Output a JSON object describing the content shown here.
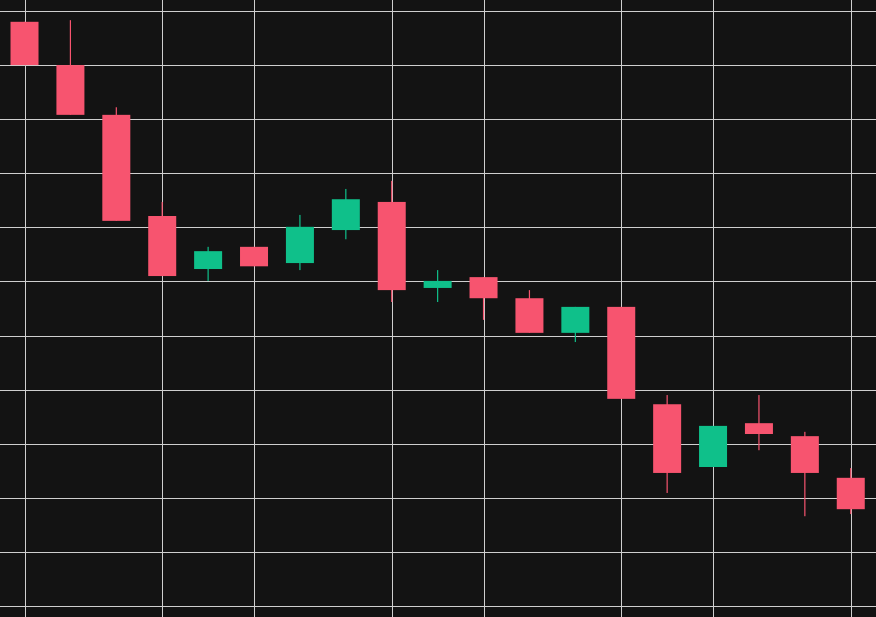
{
  "chart_data": {
    "type": "candlestick",
    "x": [
      0,
      1,
      2,
      3,
      4,
      5,
      6,
      7,
      8,
      9,
      10,
      11,
      12,
      13,
      14,
      15,
      16,
      17,
      18
    ],
    "open": [
      11.8,
      11.0,
      10.08,
      8.21,
      7.23,
      7.64,
      7.34,
      7.95,
      8.47,
      6.88,
      7.08,
      6.69,
      6.05,
      6.53,
      4.73,
      3.57,
      4.38,
      4.14,
      3.37
    ],
    "high": [
      11.8,
      11.83,
      10.22,
      8.47,
      7.64,
      7.64,
      8.23,
      8.71,
      8.86,
      7.21,
      7.08,
      6.84,
      6.53,
      6.53,
      4.9,
      4.33,
      4.9,
      4.22,
      3.55
    ],
    "low": [
      11.0,
      10.08,
      8.12,
      7.1,
      7.01,
      7.28,
      7.21,
      7.78,
      6.62,
      6.62,
      6.29,
      6.05,
      5.88,
      4.83,
      3.09,
      3.57,
      3.88,
      2.66,
      2.7
    ],
    "close": [
      11.0,
      10.08,
      8.12,
      7.1,
      7.56,
      7.28,
      8.01,
      8.52,
      6.84,
      7.01,
      6.69,
      6.05,
      6.53,
      4.83,
      3.46,
      4.33,
      4.18,
      3.46,
      2.79
    ],
    "up_color": "#0fc08a",
    "down_color": "#f7546f",
    "xlim": [
      -0.534,
      18.55
    ],
    "xticks": [
      0,
      3,
      5,
      8,
      10,
      13,
      15,
      18
    ],
    "ylim": [
      0.797,
      12.203
    ],
    "yticks": [
      1,
      2,
      3,
      4,
      5,
      6,
      7,
      8,
      9,
      10,
      11,
      12
    ],
    "grid": true
  }
}
